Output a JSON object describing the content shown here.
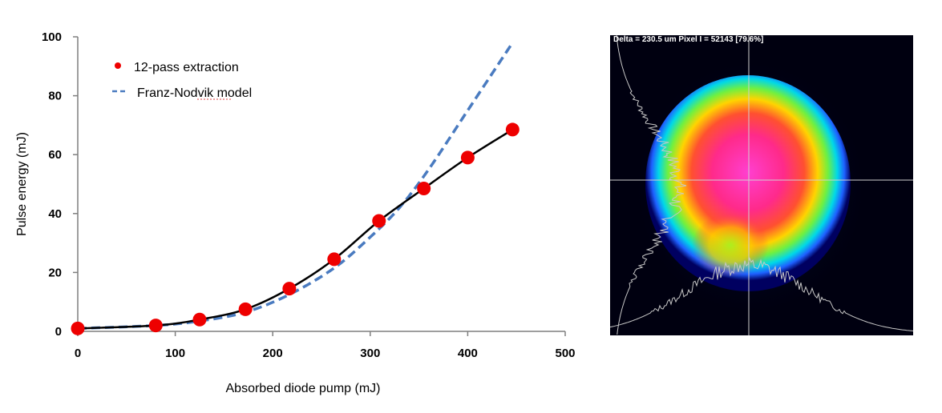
{
  "chart_data": {
    "type": "scatter",
    "title": "",
    "xlabel": "Absorbed diode pump (mJ)",
    "ylabel": "Pulse energy (mJ)",
    "xlim": [
      0,
      500
    ],
    "ylim": [
      0,
      100
    ],
    "xticks": [
      0,
      100,
      200,
      300,
      400,
      500
    ],
    "yticks": [
      0,
      20,
      40,
      60,
      80,
      100
    ],
    "grid": false,
    "legend_position": "top-left",
    "series": [
      {
        "name": "12-pass extraction",
        "style": "markers-with-line",
        "color": "#ee0000",
        "x": [
          0,
          80,
          125,
          172,
          217,
          263,
          309,
          355,
          400,
          446
        ],
        "y": [
          1,
          2,
          4,
          7.5,
          14.5,
          24.5,
          37.5,
          48.5,
          59,
          68.5
        ]
      },
      {
        "name": "Franz-Nodvik model",
        "style": "dashed-line",
        "color": "#4a7bc0",
        "x": [
          0,
          80,
          125,
          172,
          217,
          263,
          300,
          330,
          360,
          400,
          446
        ],
        "y": [
          1,
          2,
          3.5,
          6.5,
          12.5,
          21.5,
          32,
          42,
          55,
          75,
          98
        ]
      }
    ]
  },
  "beam_profile": {
    "caption": "Delta = 230.5 um Pixel I = 52143 [79.6%]"
  },
  "colors": {
    "marker": "#ee0000",
    "fit_line": "#000000",
    "model_line": "#4a7bc0",
    "beam_background": "#000010"
  }
}
